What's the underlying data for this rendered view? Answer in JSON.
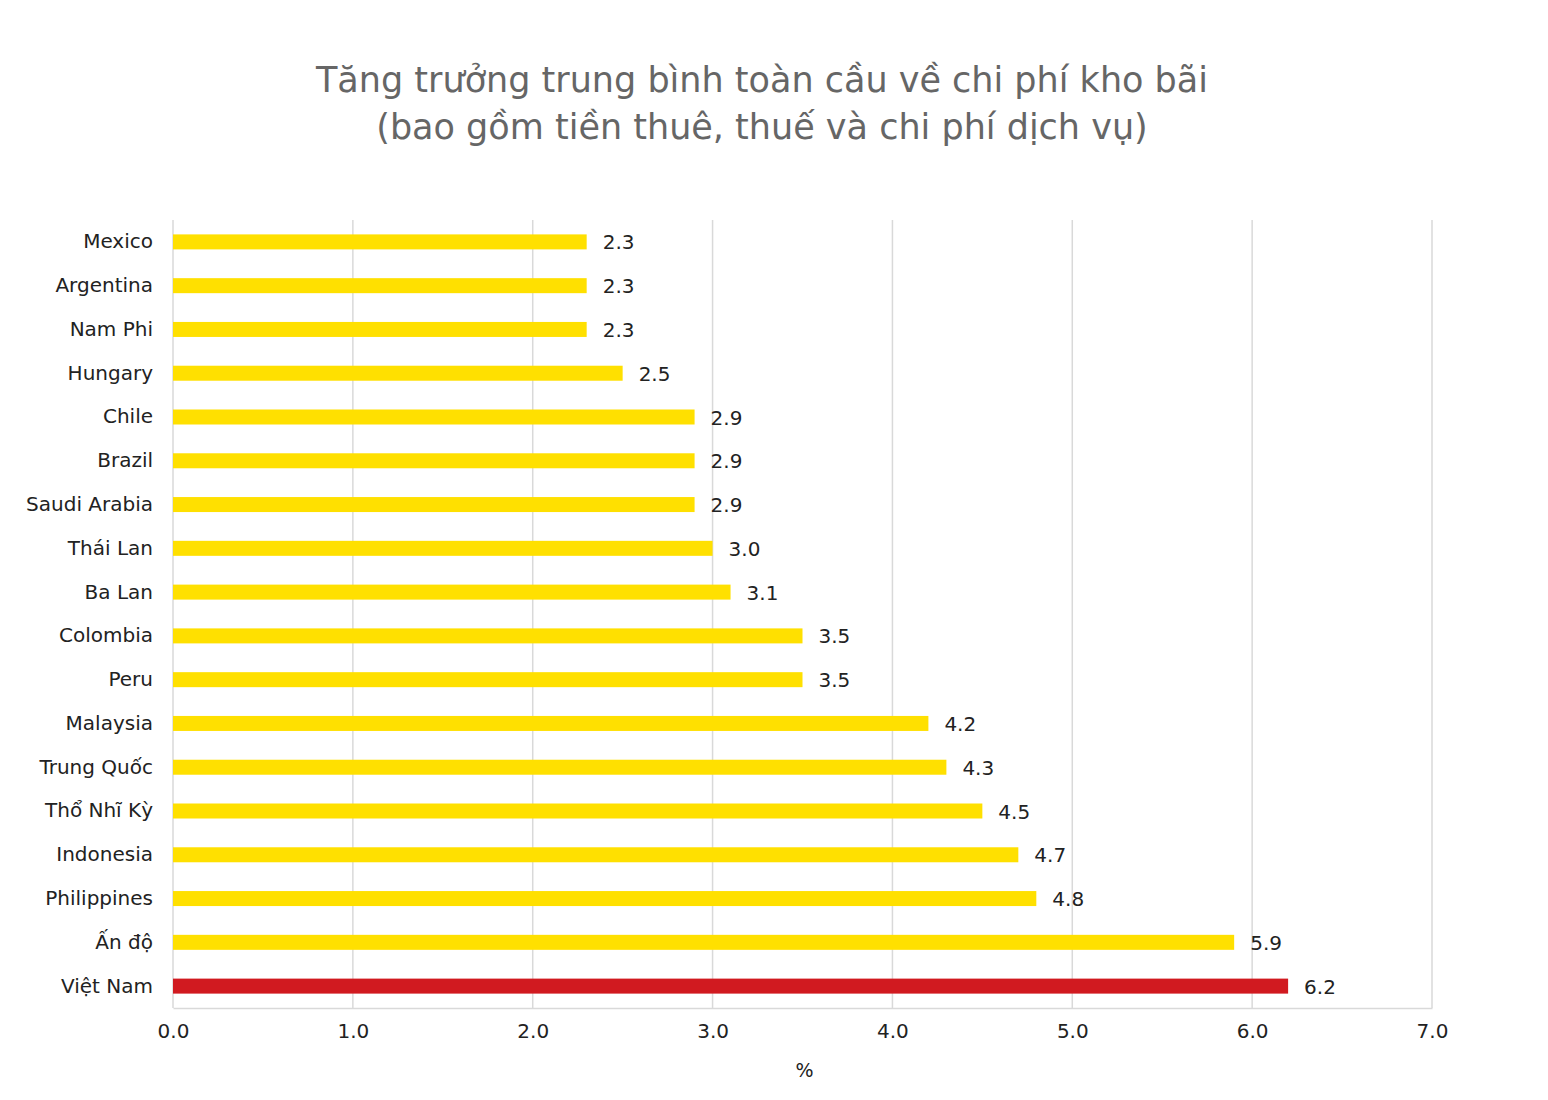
{
  "chart_data": {
    "type": "bar",
    "orientation": "horizontal",
    "title": "Tăng trưởng trung bình toàn cầu về chi phí kho bãi",
    "subtitle": "(bao gồm tiền thuê, thuế và chi phí dịch vụ)",
    "x_label": "%",
    "categories": [
      "Mexico",
      "Argentina",
      "Nam Phi",
      "Hungary",
      "Chile",
      "Brazil",
      "Saudi Arabia",
      "Thái Lan",
      "Ba Lan",
      "Colombia",
      "Peru",
      "Malaysia",
      "Trung Quốc",
      "Thổ Nhĩ Kỳ",
      "Indonesia",
      "Philippines",
      "Ấn độ",
      "Việt Nam"
    ],
    "values": [
      2.3,
      2.3,
      2.3,
      2.5,
      2.9,
      2.9,
      2.9,
      3.0,
      3.1,
      3.5,
      3.5,
      4.2,
      4.3,
      4.5,
      4.7,
      4.8,
      5.9,
      6.2
    ],
    "value_labels": [
      "2.3",
      "2.3",
      "2.3",
      "2.5",
      "2.9",
      "2.9",
      "2.9",
      "3.0",
      "3.1",
      "3.5",
      "3.5",
      "4.2",
      "4.3",
      "4.5",
      "4.7",
      "4.8",
      "5.9",
      "6.2"
    ],
    "colors": [
      "#FFE000",
      "#FFE000",
      "#FFE000",
      "#FFE000",
      "#FFE000",
      "#FFE000",
      "#FFE000",
      "#FFE000",
      "#FFE000",
      "#FFE000",
      "#FFE000",
      "#FFE000",
      "#FFE000",
      "#FFE000",
      "#FFE000",
      "#FFE000",
      "#FFE000",
      "#D11A20"
    ],
    "xlim": [
      0,
      7
    ],
    "xticks": [
      {
        "value": 0,
        "label": "0.0"
      },
      {
        "value": 1,
        "label": "1.0"
      },
      {
        "value": 2,
        "label": "2.0"
      },
      {
        "value": 3,
        "label": "3.0"
      },
      {
        "value": 4,
        "label": "4.0"
      },
      {
        "value": 5,
        "label": "5.0"
      },
      {
        "value": 6,
        "label": "6.0"
      },
      {
        "value": 7,
        "label": "7.0"
      }
    ],
    "grid": true,
    "data_labels": true
  }
}
